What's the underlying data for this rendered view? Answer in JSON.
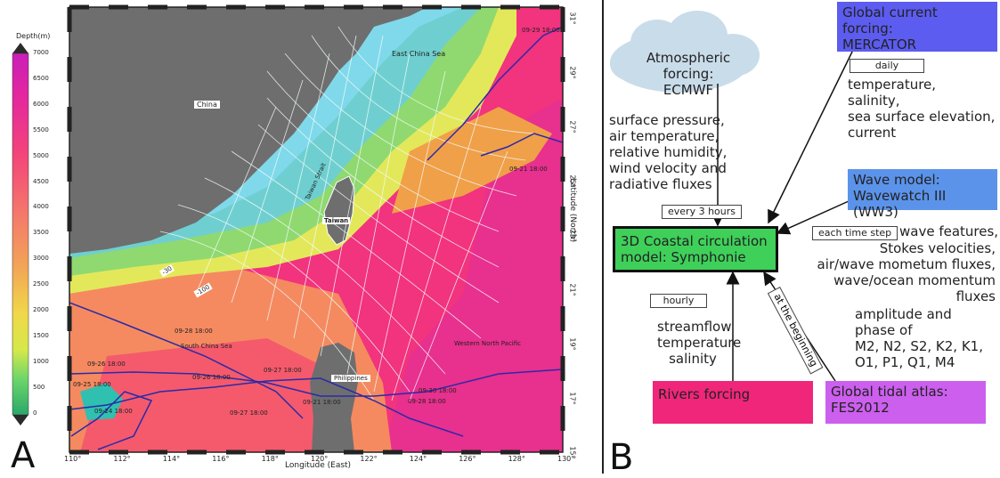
{
  "panel_a": {
    "letter": "A",
    "colorbar_title": "Depth(m)",
    "colorbar_ticks": [
      "7000",
      "6500",
      "6000",
      "5500",
      "5000",
      "4500",
      "4000",
      "3500",
      "3000",
      "2500",
      "2000",
      "1500",
      "1000",
      "500",
      "0"
    ],
    "x_ticks": [
      "110°",
      "112°",
      "114°",
      "116°",
      "118°",
      "120°",
      "122°",
      "124°",
      "126°",
      "128°",
      "130°"
    ],
    "y_ticks": [
      "31°",
      "29°",
      "27°",
      "25°",
      "23°",
      "21°",
      "19°",
      "17°",
      "15°"
    ],
    "xlabel": "Longitude (East)",
    "ylabel": "Latitude (North)",
    "regions": {
      "east_china_sea": "East China Sea",
      "china": "China",
      "taiwan_strait": "Taiwan Strait",
      "taiwan": "Taiwan",
      "south_china_sea": "South China Sea",
      "philippines": "Philippines",
      "western_north_pacific": "Western North Pacific"
    },
    "contours": {
      "c30": "-30",
      "c100": "-100"
    },
    "track_labels": [
      "09-29 18:00",
      "09-28 18:00",
      "09-26 18:00",
      "09-27 18:00",
      "09-25 18:00",
      "09-24 18:00",
      "09-30 18:00",
      "09-28 18:00",
      "09-21 18:00",
      "09-21 18:00",
      "09-26 18:00",
      "09-27 18:00"
    ],
    "colors": {
      "land": "#6e6e6e",
      "deep": "#f2337d",
      "track": "#2a2aa8",
      "grid": "#e8f4f4"
    }
  },
  "panel_b": {
    "letter": "B",
    "atmo": "Atmospheric forcing:\nECMWF",
    "current_title": "Global current forcing:\nMERCATOR",
    "current_freq": "daily",
    "current_vars": "temperature,\nsalinity,\nsea surface elevation,\ncurrent",
    "atmo_vars": "surface pressure,\nair temperature,\nrelative humidity,\nwind velocity and\nradiative fluxes",
    "atmo_freq": "every 3 hours",
    "wave_title": "Wave model:\nWavewatch III  (WW3)",
    "wave_freq": "each time step",
    "wave_vars_line1": "wave features,",
    "wave_vars_rest": "Stokes velocities,\nair/wave mometum fluxes,\nwave/ocean momentum fluxes",
    "core": "3D Coastal circulation\nmodel: Symphonie",
    "rivers_freq": "hourly",
    "rivers_vars": "streamflow\ntemperature\nsalinity",
    "rivers": "Rivers forcing",
    "tide_freq": "at the beginning",
    "tide_vars": "amplitude and\nphase of\nM2, N2, S2, K2, K1,\nO1, P1, Q1, M4",
    "tide": "Global tidal atlas:\nFES2012",
    "colors": {
      "current": "#5c5cf0",
      "wave": "#5b93ea",
      "core": "#3fd05a",
      "rivers": "#f0267a",
      "tide": "#cc5fee",
      "cloud": "#c9dcea"
    }
  }
}
